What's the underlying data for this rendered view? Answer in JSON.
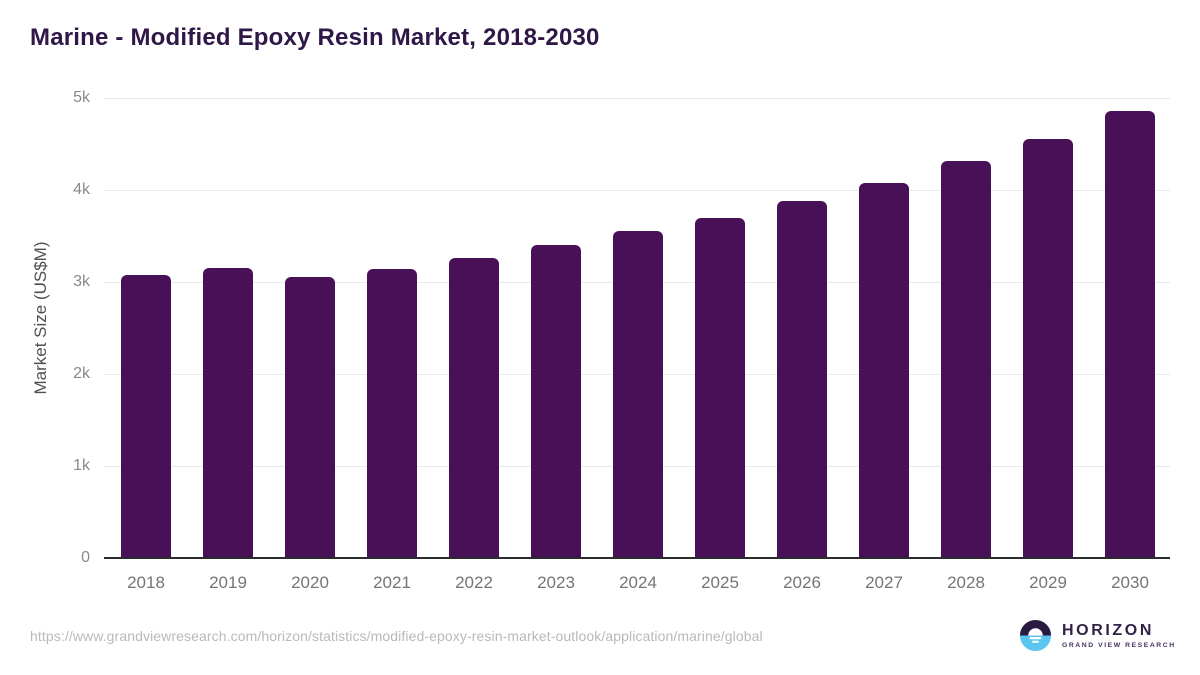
{
  "title": "Marine - Modified Epoxy Resin Market, 2018-2030",
  "footer": {
    "source_url": "https://www.grandviewresearch.com/horizon/statistics/modified-epoxy-resin-market-outlook/application/marine/global",
    "logo": {
      "name": "HORIZON",
      "tagline": "GRAND VIEW RESEARCH"
    }
  },
  "colors": {
    "bar": "#481057",
    "title": "#2f1747",
    "y_axis_title": "#4f4f4f",
    "y_tick_label": "#8a8a8a",
    "x_label": "#757575",
    "gridline": "#e9e9e9",
    "baseline": "#2b2b2b",
    "source_url": "#b9b9b9",
    "logo_dark_purple": "#2a1a41",
    "logo_light_blue": "#5bc6ef"
  },
  "chart_data": {
    "type": "bar",
    "title": "Marine - Modified Epoxy Resin Market, 2018-2030",
    "categories": [
      "2018",
      "2019",
      "2020",
      "2021",
      "2022",
      "2023",
      "2024",
      "2025",
      "2026",
      "2027",
      "2028",
      "2029",
      "2030"
    ],
    "values": [
      3080,
      3150,
      3050,
      3140,
      3260,
      3400,
      3550,
      3700,
      3880,
      4080,
      4320,
      4560,
      4860
    ],
    "xlabel": "",
    "ylabel": "Market Size (US$M)",
    "ylim": [
      0,
      5000
    ],
    "yticks": [
      {
        "value": 0,
        "label": "0"
      },
      {
        "value": 1000,
        "label": "1k"
      },
      {
        "value": 2000,
        "label": "2k"
      },
      {
        "value": 3000,
        "label": "3k"
      },
      {
        "value": 4000,
        "label": "4k"
      },
      {
        "value": 5000,
        "label": "5k"
      }
    ],
    "grid": "horizontal",
    "legend": "none",
    "bar_color": "#481057"
  }
}
